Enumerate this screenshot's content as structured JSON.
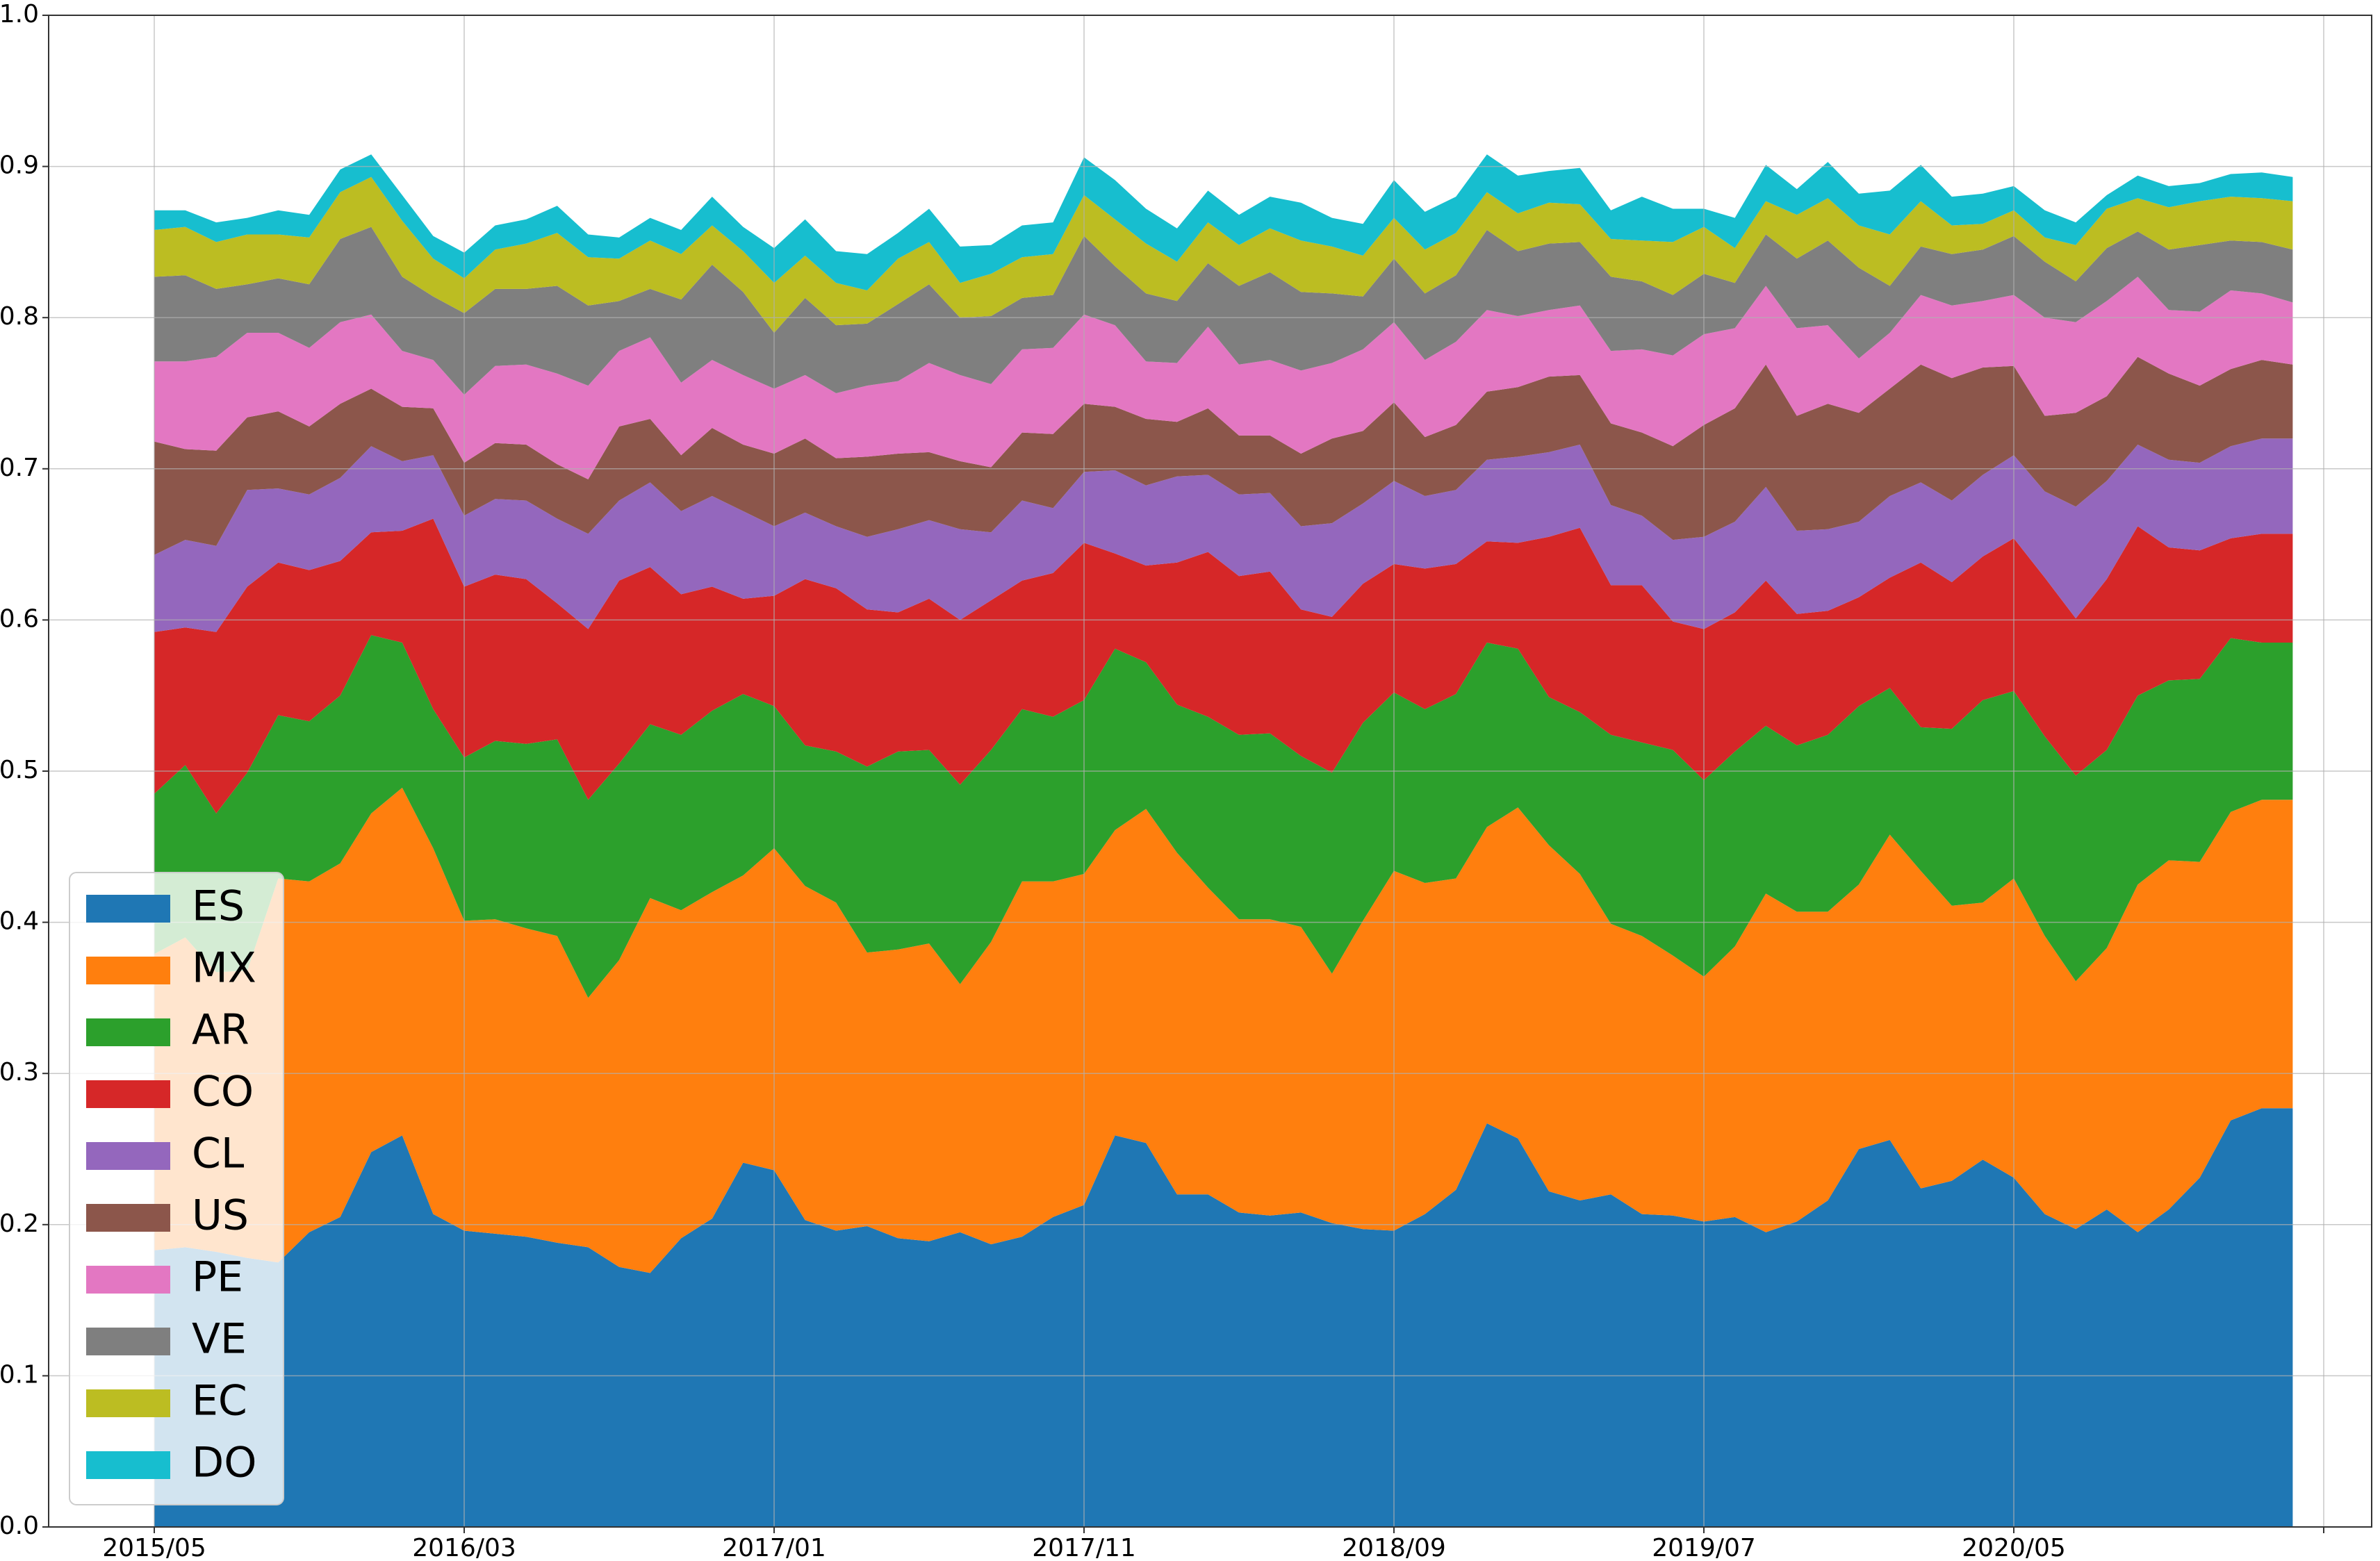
{
  "chart_data": {
    "type": "area",
    "stacked": true,
    "title": "",
    "xlabel": "",
    "ylabel": "",
    "x": [
      "2015/05",
      "2015/06",
      "2015/07",
      "2015/08",
      "2015/09",
      "2015/10",
      "2015/11",
      "2015/12",
      "2016/01",
      "2016/02",
      "2016/03",
      "2016/04",
      "2016/05",
      "2016/06",
      "2016/07",
      "2016/08",
      "2016/09",
      "2016/10",
      "2016/11",
      "2016/12",
      "2017/01",
      "2017/02",
      "2017/03",
      "2017/04",
      "2017/05",
      "2017/06",
      "2017/07",
      "2017/08",
      "2017/09",
      "2017/10",
      "2017/11",
      "2017/12",
      "2018/01",
      "2018/02",
      "2018/03",
      "2018/04",
      "2018/05",
      "2018/06",
      "2018/07",
      "2018/08",
      "2018/09",
      "2018/10",
      "2018/11",
      "2018/12",
      "2019/01",
      "2019/02",
      "2019/03",
      "2019/04",
      "2019/05",
      "2019/06",
      "2019/07",
      "2019/08",
      "2019/09",
      "2019/10",
      "2019/11",
      "2019/12",
      "2020/01",
      "2020/02",
      "2020/03",
      "2020/04",
      "2020/05",
      "2020/06",
      "2020/07",
      "2020/08",
      "2020/09",
      "2020/10",
      "2020/11",
      "2020/12",
      "2021/01",
      "2021/02"
    ],
    "x_ticks": [
      "2015/05",
      "2016/03",
      "2017/01",
      "2017/11",
      "2018/09",
      "2019/07",
      "2020/05"
    ],
    "ylim": [
      0,
      1.0
    ],
    "y_ticks": [
      "0.0",
      "0.1",
      "0.2",
      "0.3",
      "0.4",
      "0.5",
      "0.6",
      "0.7",
      "0.8",
      "0.9",
      "1.0"
    ],
    "grid": true,
    "legend_position": "bottom-left",
    "series": [
      {
        "name": "ES",
        "color": "#1f77b4",
        "values": [
          0.183,
          0.185,
          0.182,
          0.178,
          0.175,
          0.195,
          0.205,
          0.248,
          0.259,
          0.207,
          0.196,
          0.194,
          0.192,
          0.188,
          0.185,
          0.172,
          0.168,
          0.191,
          0.204,
          0.241,
          0.236,
          0.203,
          0.196,
          0.199,
          0.191,
          0.189,
          0.195,
          0.187,
          0.192,
          0.205,
          0.213,
          0.259,
          0.254,
          0.22,
          0.22,
          0.208,
          0.206,
          0.208,
          0.201,
          0.197,
          0.196,
          0.207,
          0.223,
          0.267,
          0.257,
          0.222,
          0.216,
          0.22,
          0.207,
          0.206,
          0.202,
          0.205,
          0.195,
          0.202,
          0.216,
          0.25,
          0.256,
          0.224,
          0.229,
          0.243,
          0.231,
          0.207,
          0.197,
          0.21,
          0.195,
          0.21,
          0.231,
          0.269,
          0.277,
          0.277
        ]
      },
      {
        "name": "MX",
        "color": "#ff7f0e",
        "values": [
          0.196,
          0.205,
          0.185,
          0.19,
          0.254,
          0.232,
          0.234,
          0.224,
          0.23,
          0.242,
          0.205,
          0.208,
          0.204,
          0.203,
          0.165,
          0.203,
          0.248,
          0.217,
          0.216,
          0.19,
          0.213,
          0.221,
          0.217,
          0.181,
          0.191,
          0.197,
          0.164,
          0.2,
          0.235,
          0.222,
          0.219,
          0.202,
          0.221,
          0.226,
          0.203,
          0.194,
          0.196,
          0.189,
          0.165,
          0.204,
          0.238,
          0.219,
          0.206,
          0.196,
          0.219,
          0.229,
          0.216,
          0.179,
          0.184,
          0.172,
          0.162,
          0.179,
          0.224,
          0.205,
          0.191,
          0.175,
          0.202,
          0.21,
          0.182,
          0.17,
          0.198,
          0.184,
          0.164,
          0.173,
          0.23,
          0.231,
          0.209,
          0.204,
          0.204,
          0.204
        ]
      },
      {
        "name": "AR",
        "color": "#2ca02c",
        "values": [
          0.106,
          0.114,
          0.105,
          0.131,
          0.108,
          0.106,
          0.111,
          0.118,
          0.096,
          0.092,
          0.108,
          0.118,
          0.122,
          0.13,
          0.131,
          0.13,
          0.115,
          0.116,
          0.12,
          0.12,
          0.094,
          0.093,
          0.1,
          0.123,
          0.131,
          0.128,
          0.132,
          0.127,
          0.114,
          0.109,
          0.115,
          0.12,
          0.097,
          0.098,
          0.113,
          0.122,
          0.123,
          0.113,
          0.133,
          0.131,
          0.118,
          0.115,
          0.122,
          0.122,
          0.105,
          0.098,
          0.107,
          0.125,
          0.128,
          0.136,
          0.13,
          0.129,
          0.111,
          0.11,
          0.117,
          0.118,
          0.097,
          0.095,
          0.117,
          0.134,
          0.124,
          0.132,
          0.136,
          0.131,
          0.125,
          0.119,
          0.121,
          0.115,
          0.104,
          0.104
        ]
      },
      {
        "name": "CO",
        "color": "#d62728",
        "values": [
          0.107,
          0.091,
          0.12,
          0.123,
          0.101,
          0.1,
          0.089,
          0.068,
          0.074,
          0.126,
          0.113,
          0.11,
          0.109,
          0.09,
          0.113,
          0.121,
          0.104,
          0.093,
          0.082,
          0.063,
          0.073,
          0.11,
          0.108,
          0.104,
          0.092,
          0.1,
          0.109,
          0.099,
          0.085,
          0.095,
          0.104,
          0.063,
          0.064,
          0.094,
          0.109,
          0.105,
          0.107,
          0.097,
          0.103,
          0.092,
          0.085,
          0.093,
          0.086,
          0.067,
          0.07,
          0.106,
          0.122,
          0.099,
          0.104,
          0.085,
          0.1,
          0.092,
          0.096,
          0.087,
          0.082,
          0.072,
          0.073,
          0.109,
          0.097,
          0.095,
          0.101,
          0.105,
          0.104,
          0.113,
          0.112,
          0.088,
          0.085,
          0.066,
          0.072,
          0.072
        ]
      },
      {
        "name": "CL",
        "color": "#9467bd",
        "values": [
          0.051,
          0.058,
          0.057,
          0.064,
          0.049,
          0.05,
          0.055,
          0.057,
          0.046,
          0.042,
          0.047,
          0.05,
          0.052,
          0.056,
          0.063,
          0.053,
          0.056,
          0.055,
          0.06,
          0.058,
          0.046,
          0.044,
          0.041,
          0.048,
          0.055,
          0.052,
          0.06,
          0.045,
          0.053,
          0.043,
          0.047,
          0.055,
          0.053,
          0.057,
          0.051,
          0.054,
          0.052,
          0.055,
          0.062,
          0.053,
          0.055,
          0.048,
          0.049,
          0.054,
          0.057,
          0.056,
          0.055,
          0.053,
          0.046,
          0.054,
          0.061,
          0.06,
          0.062,
          0.055,
          0.054,
          0.05,
          0.054,
          0.053,
          0.054,
          0.054,
          0.055,
          0.057,
          0.074,
          0.065,
          0.054,
          0.058,
          0.058,
          0.061,
          0.063,
          0.063
        ]
      },
      {
        "name": "US",
        "color": "#8c564b",
        "values": [
          0.075,
          0.06,
          0.063,
          0.048,
          0.051,
          0.045,
          0.049,
          0.038,
          0.036,
          0.031,
          0.035,
          0.037,
          0.037,
          0.036,
          0.036,
          0.049,
          0.042,
          0.037,
          0.045,
          0.044,
          0.048,
          0.049,
          0.045,
          0.053,
          0.05,
          0.045,
          0.045,
          0.043,
          0.045,
          0.049,
          0.045,
          0.042,
          0.044,
          0.036,
          0.044,
          0.039,
          0.038,
          0.048,
          0.056,
          0.048,
          0.052,
          0.039,
          0.043,
          0.045,
          0.046,
          0.05,
          0.046,
          0.054,
          0.055,
          0.062,
          0.074,
          0.075,
          0.081,
          0.076,
          0.083,
          0.072,
          0.071,
          0.078,
          0.081,
          0.071,
          0.059,
          0.05,
          0.062,
          0.056,
          0.058,
          0.057,
          0.051,
          0.051,
          0.052,
          0.049
        ]
      },
      {
        "name": "PE",
        "color": "#e377c2",
        "values": [
          0.053,
          0.058,
          0.062,
          0.056,
          0.052,
          0.052,
          0.054,
          0.049,
          0.037,
          0.032,
          0.045,
          0.051,
          0.053,
          0.06,
          0.062,
          0.05,
          0.054,
          0.048,
          0.045,
          0.046,
          0.043,
          0.042,
          0.043,
          0.047,
          0.048,
          0.059,
          0.057,
          0.055,
          0.055,
          0.057,
          0.059,
          0.054,
          0.038,
          0.039,
          0.054,
          0.047,
          0.05,
          0.055,
          0.05,
          0.054,
          0.053,
          0.051,
          0.055,
          0.054,
          0.047,
          0.044,
          0.046,
          0.048,
          0.055,
          0.06,
          0.06,
          0.053,
          0.052,
          0.058,
          0.052,
          0.036,
          0.037,
          0.046,
          0.048,
          0.044,
          0.047,
          0.065,
          0.06,
          0.063,
          0.053,
          0.042,
          0.049,
          0.052,
          0.044,
          0.041
        ]
      },
      {
        "name": "VE",
        "color": "#7f7f7f",
        "values": [
          0.056,
          0.057,
          0.045,
          0.032,
          0.036,
          0.042,
          0.055,
          0.058,
          0.049,
          0.042,
          0.054,
          0.051,
          0.05,
          0.058,
          0.053,
          0.033,
          0.032,
          0.055,
          0.063,
          0.055,
          0.037,
          0.051,
          0.045,
          0.041,
          0.051,
          0.052,
          0.038,
          0.045,
          0.034,
          0.035,
          0.052,
          0.039,
          0.045,
          0.041,
          0.042,
          0.052,
          0.058,
          0.052,
          0.046,
          0.035,
          0.042,
          0.044,
          0.044,
          0.053,
          0.043,
          0.044,
          0.042,
          0.049,
          0.045,
          0.04,
          0.04,
          0.03,
          0.034,
          0.046,
          0.056,
          0.06,
          0.031,
          0.032,
          0.034,
          0.034,
          0.039,
          0.037,
          0.027,
          0.035,
          0.03,
          0.04,
          0.044,
          0.033,
          0.034,
          0.035
        ]
      },
      {
        "name": "EC",
        "color": "#bcbd22",
        "values": [
          0.031,
          0.032,
          0.031,
          0.033,
          0.029,
          0.031,
          0.031,
          0.033,
          0.037,
          0.025,
          0.023,
          0.026,
          0.03,
          0.035,
          0.032,
          0.028,
          0.032,
          0.03,
          0.026,
          0.027,
          0.033,
          0.028,
          0.028,
          0.022,
          0.03,
          0.028,
          0.023,
          0.028,
          0.027,
          0.027,
          0.027,
          0.031,
          0.033,
          0.026,
          0.027,
          0.027,
          0.029,
          0.034,
          0.031,
          0.027,
          0.027,
          0.029,
          0.028,
          0.025,
          0.025,
          0.027,
          0.025,
          0.025,
          0.027,
          0.035,
          0.031,
          0.023,
          0.022,
          0.029,
          0.028,
          0.028,
          0.034,
          0.03,
          0.019,
          0.017,
          0.017,
          0.016,
          0.024,
          0.026,
          0.022,
          0.028,
          0.029,
          0.029,
          0.029,
          0.032
        ]
      },
      {
        "name": "DO",
        "color": "#17becf",
        "values": [
          0.013,
          0.011,
          0.013,
          0.011,
          0.016,
          0.015,
          0.015,
          0.015,
          0.017,
          0.015,
          0.017,
          0.016,
          0.016,
          0.018,
          0.015,
          0.014,
          0.015,
          0.016,
          0.019,
          0.016,
          0.023,
          0.024,
          0.021,
          0.024,
          0.017,
          0.022,
          0.024,
          0.019,
          0.021,
          0.021,
          0.025,
          0.026,
          0.023,
          0.022,
          0.021,
          0.02,
          0.021,
          0.025,
          0.019,
          0.021,
          0.025,
          0.025,
          0.024,
          0.025,
          0.025,
          0.021,
          0.024,
          0.019,
          0.029,
          0.022,
          0.012,
          0.02,
          0.024,
          0.017,
          0.024,
          0.021,
          0.029,
          0.024,
          0.019,
          0.02,
          0.016,
          0.018,
          0.015,
          0.009,
          0.015,
          0.014,
          0.012,
          0.015,
          0.017,
          0.016
        ]
      }
    ]
  }
}
